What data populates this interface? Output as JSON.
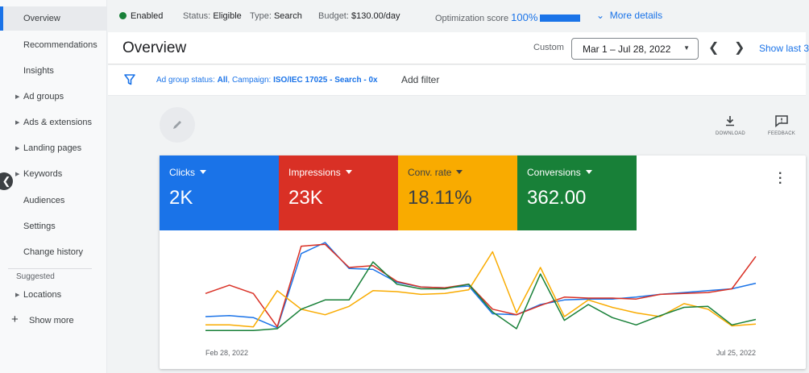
{
  "sidebar": {
    "items": [
      {
        "label": "Overview",
        "expandable": false,
        "active": true
      },
      {
        "label": "Recommendations",
        "expandable": false
      },
      {
        "label": "Insights",
        "expandable": false
      },
      {
        "label": "Ad groups",
        "expandable": true
      },
      {
        "label": "Ads & extensions",
        "expandable": true
      },
      {
        "label": "Landing pages",
        "expandable": true
      },
      {
        "label": "Keywords",
        "expandable": true
      },
      {
        "label": "Audiences",
        "expandable": false
      },
      {
        "label": "Settings",
        "expandable": false
      },
      {
        "label": "Change history",
        "expandable": false
      }
    ],
    "suggested_label": "Suggested",
    "suggested_items": [
      {
        "label": "Locations",
        "expandable": true
      }
    ],
    "show_more_label": "Show more"
  },
  "status": {
    "enabled": "Enabled",
    "status_label": "Status:",
    "status_value": "Eligible",
    "type_label": "Type:",
    "type_value": "Search",
    "budget_label": "Budget:",
    "budget_value": "$130.00/day",
    "opt_label": "Optimization score",
    "opt_value": "100%",
    "more_details": "More details"
  },
  "header": {
    "title": "Overview",
    "custom_label": "Custom",
    "date_range": "Mar 1 – Jul 28, 2022",
    "show_last": "Show last 3"
  },
  "filter": {
    "prefix": "Ad group status:",
    "status_value": "All",
    "campaign_prefix": ", Campaign:",
    "campaign_value": "ISO/IEC 17025 - Search - 0x",
    "add_filter": "Add filter"
  },
  "tools": {
    "download": "DOWNLOAD",
    "feedback": "FEEDBACK"
  },
  "metrics": [
    {
      "label": "Clicks",
      "value": "2K",
      "color": "#1a73e8"
    },
    {
      "label": "Impressions",
      "value": "23K",
      "color": "#d93025"
    },
    {
      "label": "Conv. rate",
      "value": "18.11%",
      "color": "#f9ab00",
      "text_color": "#3c4043"
    },
    {
      "label": "Conversions",
      "value": "362.00",
      "color": "#188038"
    }
  ],
  "chart_data": {
    "type": "line",
    "x_labels": [
      "Feb 28, 2022",
      "Jul 25, 2022"
    ],
    "ylim": [
      0,
      100
    ],
    "grid": false,
    "series": [
      {
        "name": "Clicks",
        "color": "#1a73e8",
        "values": [
          20,
          21,
          19,
          8,
          88,
          100,
          72,
          71,
          57,
          52,
          51,
          53,
          23,
          22,
          33,
          38,
          39,
          39,
          41,
          44,
          46,
          48,
          50,
          56
        ]
      },
      {
        "name": "Impressions",
        "color": "#d93025",
        "values": [
          45,
          54,
          45,
          9,
          96,
          98,
          73,
          75,
          58,
          52,
          51,
          55,
          28,
          22,
          32,
          41,
          40,
          40,
          39,
          44,
          45,
          46,
          50,
          85
        ]
      },
      {
        "name": "Conv. rate",
        "color": "#f9ab00",
        "values": [
          11,
          11,
          9,
          48,
          28,
          22,
          31,
          48,
          47,
          44,
          45,
          49,
          90,
          24,
          73,
          20,
          38,
          30,
          24,
          20,
          34,
          28,
          10,
          12
        ]
      },
      {
        "name": "Conversions",
        "color": "#188038",
        "values": [
          5,
          5,
          5,
          7,
          28,
          38,
          38,
          79,
          55,
          50,
          50,
          55,
          25,
          7,
          66,
          16,
          33,
          19,
          11,
          21,
          30,
          31,
          11,
          17
        ]
      }
    ]
  }
}
